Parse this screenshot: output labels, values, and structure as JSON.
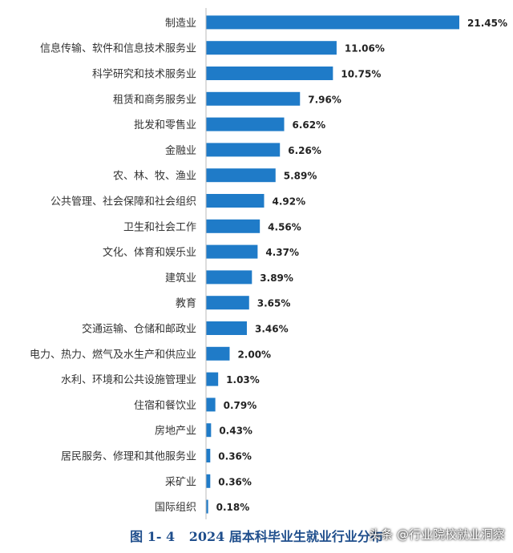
{
  "chart_data": {
    "type": "bar",
    "orientation": "horizontal",
    "categories": [
      "制造业",
      "信息传输、软件和信息技术服务业",
      "科学研究和技术服务业",
      "租赁和商务服务业",
      "批发和零售业",
      "金融业",
      "农、林、牧、渔业",
      "公共管理、社会保障和社会组织",
      "卫生和社会工作",
      "文化、体育和娱乐业",
      "建筑业",
      "教育",
      "交通运输、仓储和邮政业",
      "电力、热力、燃气及水生产和供应业",
      "水利、环境和公共设施管理业",
      "住宿和餐饮业",
      "房地产业",
      "居民服务、修理和其他服务业",
      "采矿业",
      "国际组织"
    ],
    "values": [
      21.45,
      11.06,
      10.75,
      7.96,
      6.62,
      6.26,
      5.89,
      4.92,
      4.56,
      4.37,
      3.89,
      3.65,
      3.46,
      2.0,
      1.03,
      0.79,
      0.43,
      0.36,
      0.36,
      0.18
    ],
    "value_labels": [
      "21.45%",
      "11.06%",
      "10.75%",
      "7.96%",
      "6.62%",
      "6.26%",
      "5.89%",
      "4.92%",
      "4.56%",
      "4.37%",
      "3.89%",
      "3.65%",
      "3.46%",
      "2.00%",
      "1.03%",
      "0.79%",
      "0.43%",
      "0.36%",
      "0.36%",
      "0.18%"
    ],
    "xlim": [
      0,
      21.45
    ],
    "grid": false,
    "bar_color": "#1f7bc8"
  },
  "caption": {
    "figure_no": "图 1- 4",
    "title": "2024 届本科毕业生就业行业分布"
  },
  "watermark": "头条 @行业院校就业洞察"
}
